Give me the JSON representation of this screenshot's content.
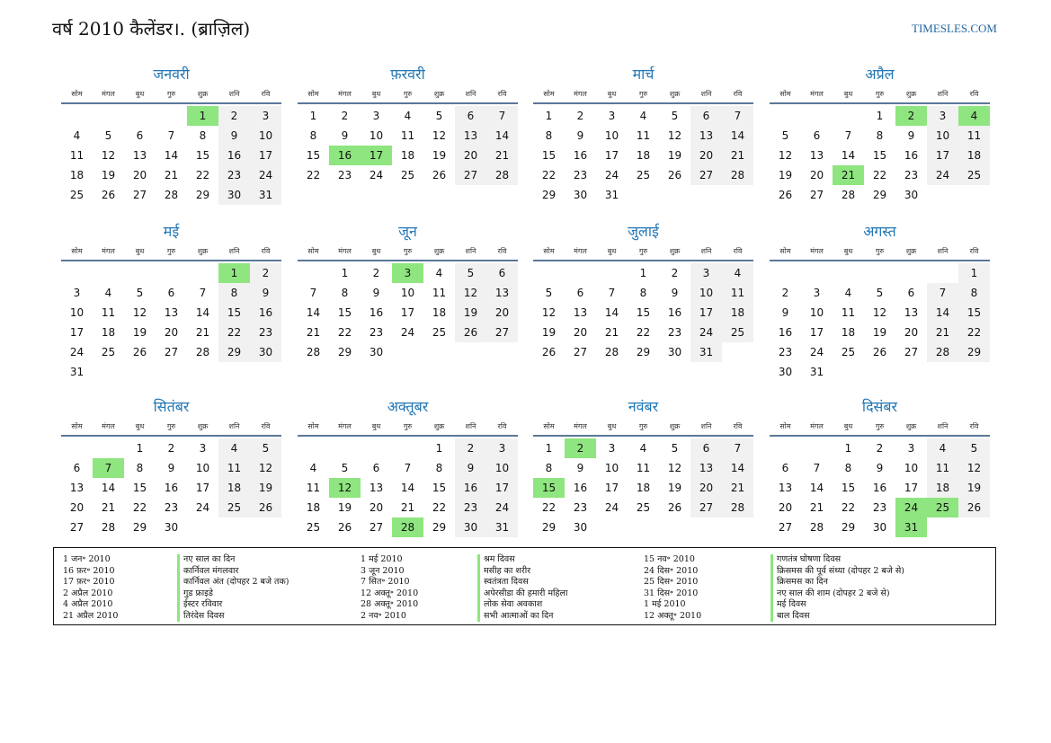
{
  "header": {
    "title": "वर्ष 2010 कैलेंडर।. (ब्राज़िल)",
    "site": "TIMESLES.COM"
  },
  "weekdays": [
    "सोम",
    "मंगल",
    "बुध",
    "गुरु",
    "शुक्र",
    "शनि",
    "रवि"
  ],
  "colors": {
    "weekend": "#f1f1f1",
    "holiday": "#8fe57f",
    "month_name": "#2277b5",
    "rule": "#5a7898"
  },
  "months": [
    {
      "name": "जनवरी",
      "offset": 4,
      "days": 31,
      "holidays": [
        1
      ]
    },
    {
      "name": "फ़रवरी",
      "offset": 0,
      "days": 28,
      "holidays": [
        16,
        17
      ]
    },
    {
      "name": "मार्च",
      "offset": 0,
      "days": 31,
      "holidays": []
    },
    {
      "name": "अप्रैल",
      "offset": 3,
      "days": 30,
      "holidays": [
        2,
        4,
        21
      ]
    },
    {
      "name": "मई",
      "offset": 5,
      "days": 31,
      "holidays": [
        1
      ]
    },
    {
      "name": "जून",
      "offset": 1,
      "days": 30,
      "holidays": [
        3
      ]
    },
    {
      "name": "जुलाई",
      "offset": 3,
      "days": 31,
      "holidays": []
    },
    {
      "name": "अगस्त",
      "offset": 6,
      "days": 31,
      "holidays": []
    },
    {
      "name": "सितंबर",
      "offset": 2,
      "days": 30,
      "holidays": [
        7
      ]
    },
    {
      "name": "अक्तूबर",
      "offset": 4,
      "days": 31,
      "holidays": [
        12,
        28
      ]
    },
    {
      "name": "नवंबर",
      "offset": 0,
      "days": 30,
      "holidays": [
        2,
        15
      ]
    },
    {
      "name": "दिसंबर",
      "offset": 2,
      "days": 31,
      "holidays": [
        24,
        25,
        31
      ]
    }
  ],
  "legend": {
    "col1_dates": [
      "1 जन॰ 2010",
      "16 फ़र॰ 2010",
      "17 फ़र॰ 2010",
      "2 अप्रैल 2010",
      "4 अप्रैल 2010",
      "21 अप्रैल 2010"
    ],
    "col1_names": [
      "नए साल का दिन",
      "कार्निवल मंगलवार",
      "कार्निवल अंत (दोपहर 2 बजे तक)",
      "गुड फ्राइडे",
      "ईस्टर रविवार",
      "तिरंदेस दिवस"
    ],
    "col2_dates": [
      "1 मई 2010",
      "3 जून 2010",
      "7 सित॰ 2010",
      "12 अक्तू॰ 2010",
      "28 अक्तू॰ 2010",
      "2 नव॰ 2010"
    ],
    "col2_names": [
      "श्रम दिवस",
      "मसीह का शरीर",
      "स्वतंत्रता दिवस",
      "अपेरसीडा की हमारी महिला",
      "लोक सेवा अवकाश",
      "सभी आत्माओं का दिन"
    ],
    "col3_dates": [
      "15 नव॰ 2010",
      "24 दिस॰ 2010",
      "25 दिस॰ 2010",
      "31 दिस॰ 2010",
      "1 मई 2010",
      "12 अक्तू॰ 2010"
    ],
    "col3_names": [
      "गणतंत्र घोषणा दिवस",
      "क्रिसमस की पूर्व संध्या (दोपहर 2 बजे से)",
      "क्रिसमस का दिन",
      "नए साल की शाम (दोपहर 2 बजे से)",
      "मई दिवस",
      "बाल दिवस"
    ]
  }
}
